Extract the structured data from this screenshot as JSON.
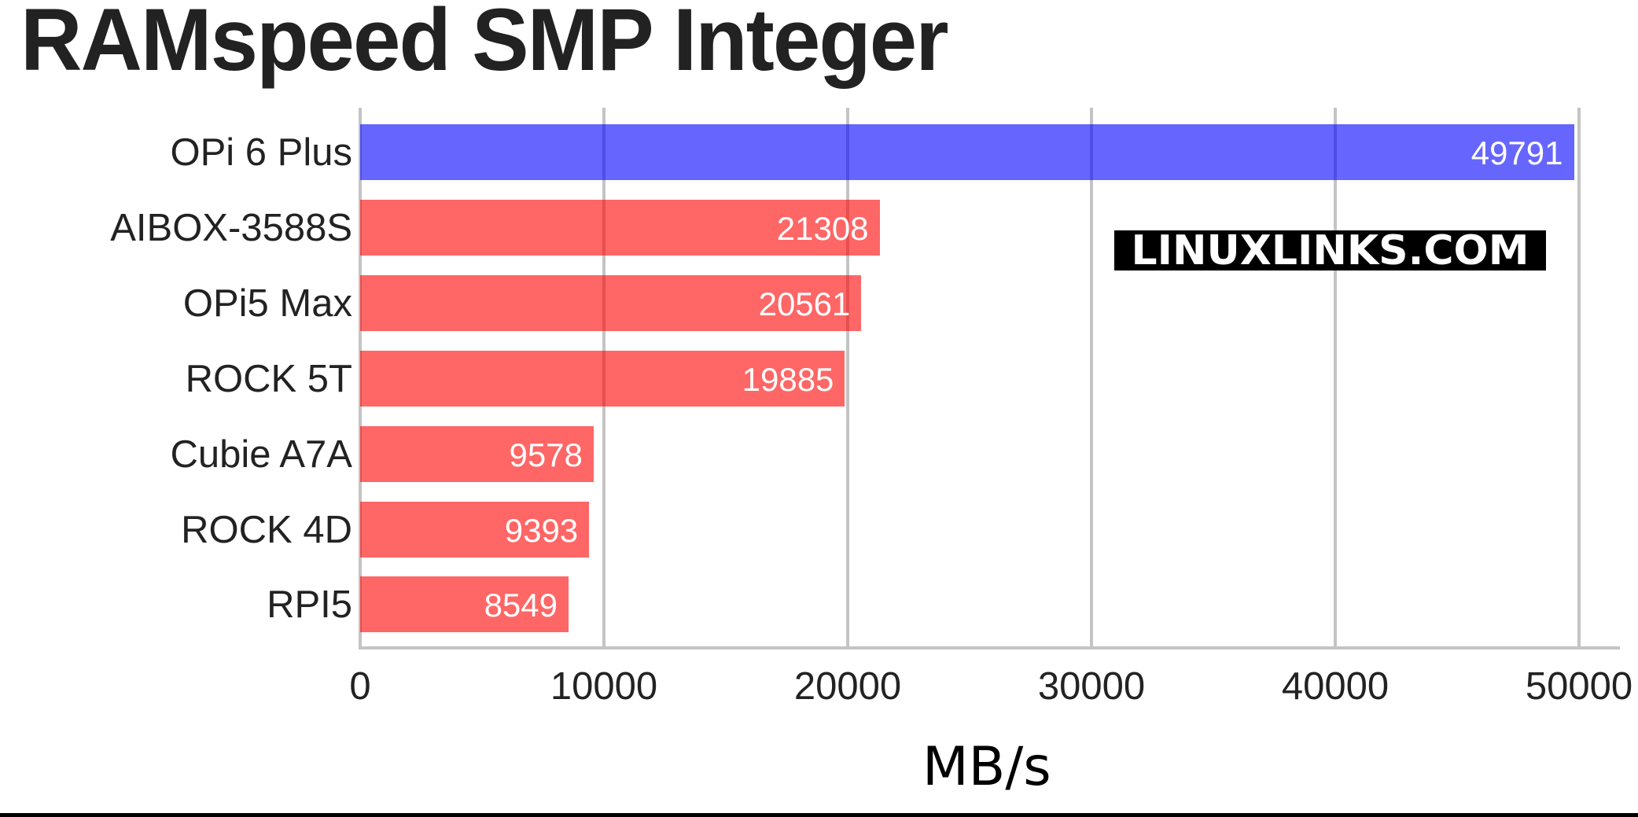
{
  "title": "RAMspeed SMP Integer",
  "watermark": "LINUXLINKS.COM",
  "colors": {
    "highlight": "#0000ff",
    "default": "#ff0000",
    "grid": "#c4c4c4",
    "text": "#222222"
  },
  "x_axis": {
    "label": "MB/s",
    "ticks": [
      "0",
      "10000",
      "20000",
      "30000",
      "40000",
      "50000"
    ]
  },
  "chart_data": {
    "type": "bar",
    "orientation": "horizontal",
    "title": "RAMspeed SMP Integer",
    "xlabel": "MB/s",
    "ylabel": "",
    "categories": [
      "OPi 6 Plus",
      "AIBOX-3588S",
      "OPi5 Max",
      "ROCK 5T",
      "Cubie A7A",
      "ROCK 4D",
      "RPI5"
    ],
    "values": [
      49791,
      21308,
      20561,
      19885,
      9578,
      9393,
      8549
    ],
    "value_labels": [
      "49791",
      "21308",
      "20561",
      "19885",
      "9578",
      "9393",
      "8549"
    ],
    "bar_colors": [
      "#6666ff",
      "#ff6666",
      "#ff6666",
      "#ff6666",
      "#ff6666",
      "#ff6666",
      "#ff6666"
    ],
    "xlim": [
      0,
      51500
    ],
    "xticks": [
      0,
      10000,
      20000,
      30000,
      40000,
      50000
    ],
    "grid": "vertical",
    "legend": "none",
    "annotations": [
      "LINUXLINKS.COM"
    ]
  }
}
